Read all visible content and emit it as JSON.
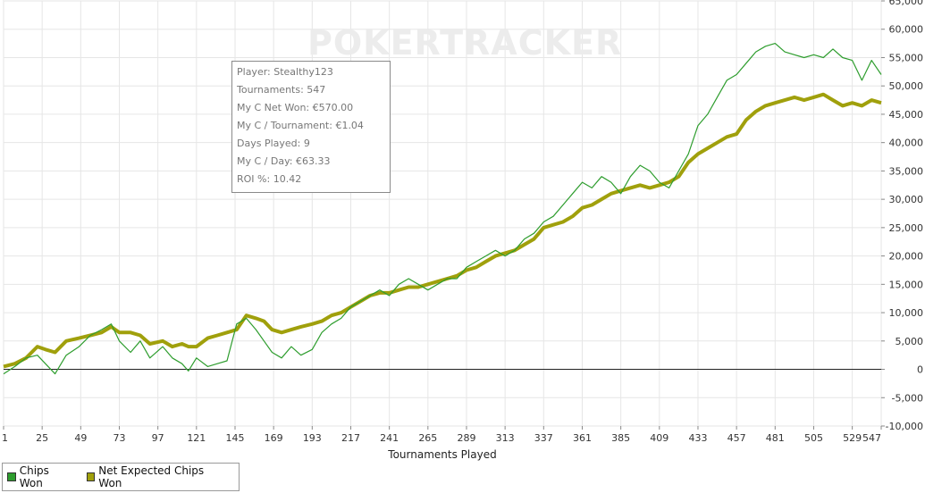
{
  "watermark": "POKERTRACKER",
  "tooltip": {
    "lines": [
      "Player: Stealthy123",
      "Tournaments: 547",
      "My C Net Won: €570.00",
      "My C / Tournament: €1.04",
      "Days Played: 9",
      "My C / Day: €63.33",
      "ROI %: 10.42"
    ]
  },
  "colors": {
    "chips": "#2e9d2e",
    "expected": "#a0a00c"
  },
  "chart_data": {
    "type": "line",
    "title": "",
    "xlabel": "Tournaments Played",
    "ylabel": "",
    "xlim": [
      1,
      547
    ],
    "ylim": [
      -10000,
      65000
    ],
    "x_ticks": [
      1,
      25,
      49,
      73,
      97,
      121,
      145,
      169,
      193,
      217,
      241,
      265,
      289,
      313,
      337,
      361,
      385,
      409,
      433,
      457,
      481,
      505,
      529,
      547
    ],
    "y_ticks": [
      -10000,
      -5000,
      0,
      5000,
      10000,
      15000,
      20000,
      25000,
      30000,
      35000,
      40000,
      45000,
      50000,
      55000,
      60000,
      65000
    ],
    "y_tick_labels": [
      "-10,000",
      "-5,000",
      "0",
      "5,000",
      "10,000",
      "15,000",
      "20,000",
      "25,000",
      "30,000",
      "35,000",
      "40,000",
      "45,000",
      "50,000",
      "55,000",
      "60,000",
      "65,000"
    ],
    "legend_position": "bottom-left",
    "series": [
      {
        "name": "Chips Won",
        "x": [
          1,
          8,
          15,
          22,
          27,
          33,
          40,
          48,
          55,
          62,
          68,
          73,
          80,
          86,
          92,
          100,
          106,
          112,
          116,
          121,
          128,
          134,
          140,
          146,
          152,
          158,
          163,
          168,
          174,
          180,
          186,
          193,
          199,
          205,
          211,
          217,
          223,
          229,
          235,
          241,
          247,
          253,
          259,
          265,
          271,
          277,
          283,
          289,
          295,
          301,
          307,
          313,
          319,
          325,
          331,
          337,
          343,
          349,
          355,
          361,
          367,
          373,
          379,
          385,
          391,
          397,
          403,
          409,
          415,
          421,
          427,
          433,
          439,
          445,
          451,
          457,
          463,
          469,
          475,
          481,
          487,
          493,
          499,
          505,
          511,
          517,
          523,
          529,
          535,
          541,
          547
        ],
        "y": [
          -800,
          500,
          2000,
          2500,
          1000,
          -800,
          2500,
          4000,
          6000,
          7000,
          8000,
          5000,
          3000,
          5000,
          2000,
          4000,
          2000,
          1000,
          -300,
          2000,
          500,
          1000,
          1500,
          8000,
          9000,
          7000,
          5000,
          3000,
          2000,
          4000,
          2500,
          3500,
          6500,
          8000,
          9000,
          11000,
          12000,
          13000,
          14000,
          13000,
          15000,
          16000,
          15000,
          14000,
          15000,
          16000,
          16000,
          18000,
          19000,
          20000,
          21000,
          20000,
          21000,
          23000,
          24000,
          26000,
          27000,
          29000,
          31000,
          33000,
          32000,
          34000,
          33000,
          31000,
          34000,
          36000,
          35000,
          33000,
          32000,
          35000,
          38000,
          43000,
          45000,
          48000,
          51000,
          52000,
          54000,
          56000,
          57000,
          57500,
          56000,
          55500,
          55000,
          55500,
          55000,
          56500,
          55000,
          54500,
          51000,
          54500,
          52000
        ]
      },
      {
        "name": "Net Expected Chips Won",
        "x": [
          1,
          8,
          15,
          22,
          27,
          33,
          40,
          48,
          55,
          62,
          68,
          73,
          80,
          86,
          92,
          100,
          106,
          112,
          116,
          121,
          128,
          134,
          140,
          146,
          152,
          158,
          163,
          168,
          174,
          180,
          186,
          193,
          199,
          205,
          211,
          217,
          223,
          229,
          235,
          241,
          247,
          253,
          259,
          265,
          271,
          277,
          283,
          289,
          295,
          301,
          307,
          313,
          319,
          325,
          331,
          337,
          343,
          349,
          355,
          361,
          367,
          373,
          379,
          385,
          391,
          397,
          403,
          409,
          415,
          421,
          427,
          433,
          439,
          445,
          451,
          457,
          463,
          469,
          475,
          481,
          487,
          493,
          499,
          505,
          511,
          517,
          523,
          529,
          535,
          541,
          547
        ],
        "y": [
          500,
          1000,
          2000,
          4000,
          3500,
          3000,
          5000,
          5500,
          6000,
          6500,
          7500,
          6500,
          6500,
          6000,
          4500,
          5000,
          4000,
          4500,
          4000,
          4000,
          5500,
          6000,
          6500,
          7000,
          9500,
          9000,
          8500,
          7000,
          6500,
          7000,
          7500,
          8000,
          8500,
          9500,
          10000,
          11000,
          12000,
          13000,
          13500,
          13500,
          14000,
          14500,
          14500,
          15000,
          15500,
          16000,
          16500,
          17500,
          18000,
          19000,
          20000,
          20500,
          21000,
          22000,
          23000,
          25000,
          25500,
          26000,
          27000,
          28500,
          29000,
          30000,
          31000,
          31500,
          32000,
          32500,
          32000,
          32500,
          33000,
          34000,
          36500,
          38000,
          39000,
          40000,
          41000,
          41500,
          44000,
          45500,
          46500,
          47000,
          47500,
          48000,
          47500,
          48000,
          48500,
          47500,
          46500,
          47000,
          46500,
          47500,
          47000
        ]
      }
    ]
  }
}
